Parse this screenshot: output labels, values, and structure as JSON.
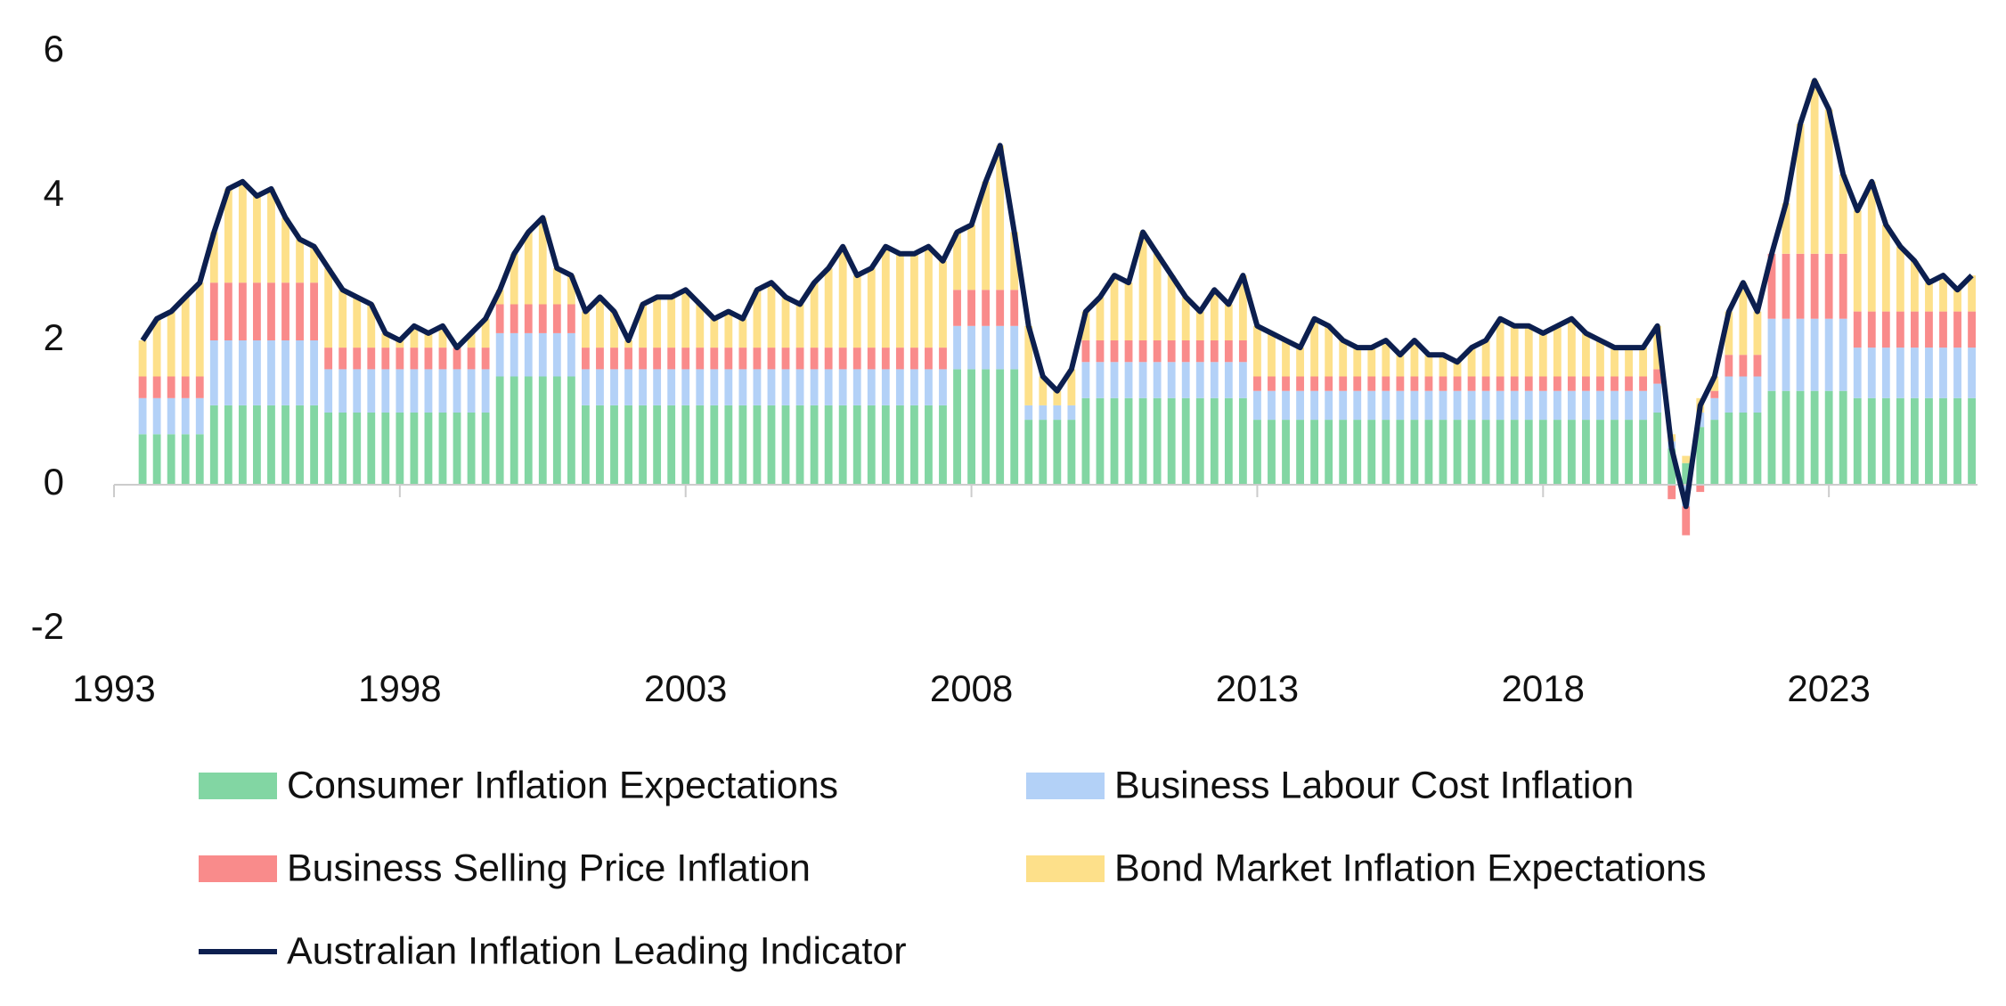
{
  "chart_data": {
    "type": "bar",
    "stacked": true,
    "x": [
      1993.5,
      1993.75,
      1994,
      1994.25,
      1994.5,
      1994.75,
      1995,
      1995.25,
      1995.5,
      1995.75,
      1996,
      1996.25,
      1996.5,
      1996.75,
      1997,
      1997.25,
      1997.5,
      1997.75,
      1998,
      1998.25,
      1998.5,
      1998.75,
      1999,
      1999.25,
      1999.5,
      1999.75,
      2000,
      2000.25,
      2000.5,
      2000.75,
      2001,
      2001.25,
      2001.5,
      2001.75,
      2002,
      2002.25,
      2002.5,
      2002.75,
      2003,
      2003.25,
      2003.5,
      2003.75,
      2004,
      2004.25,
      2004.5,
      2004.75,
      2005,
      2005.25,
      2005.5,
      2005.75,
      2006,
      2006.25,
      2006.5,
      2006.75,
      2007,
      2007.25,
      2007.5,
      2007.75,
      2008,
      2008.25,
      2008.5,
      2008.75,
      2009,
      2009.25,
      2009.5,
      2009.75,
      2010,
      2010.25,
      2010.5,
      2010.75,
      2011,
      2011.25,
      2011.5,
      2011.75,
      2012,
      2012.25,
      2012.5,
      2012.75,
      2013,
      2013.25,
      2013.5,
      2013.75,
      2014,
      2014.25,
      2014.5,
      2014.75,
      2015,
      2015.25,
      2015.5,
      2015.75,
      2016,
      2016.25,
      2016.5,
      2016.75,
      2017,
      2017.25,
      2017.5,
      2017.75,
      2018,
      2018.25,
      2018.5,
      2018.75,
      2019,
      2019.25,
      2019.5,
      2019.75,
      2020,
      2020.25,
      2020.5,
      2020.75,
      2021,
      2021.25,
      2021.5,
      2021.75,
      2022,
      2022.25,
      2022.5,
      2022.75,
      2023,
      2023.25,
      2023.5,
      2023.75,
      2024,
      2024.25,
      2024.5,
      2024.75,
      2025,
      2025.25,
      2025.5
    ],
    "series": [
      {
        "name": "Consumer Inflation Expectations",
        "color": "#82d6a3",
        "values": [
          0.7,
          0.7,
          0.7,
          0.7,
          0.7,
          1.1,
          1.1,
          1.1,
          1.1,
          1.1,
          1.1,
          1.1,
          1.1,
          1.0,
          1.0,
          1.0,
          1.0,
          1.0,
          1.0,
          1.0,
          1.0,
          1.0,
          1.0,
          1.0,
          1.0,
          1.5,
          1.5,
          1.5,
          1.5,
          1.5,
          1.5,
          1.1,
          1.1,
          1.1,
          1.1,
          1.1,
          1.1,
          1.1,
          1.1,
          1.1,
          1.1,
          1.1,
          1.1,
          1.1,
          1.1,
          1.1,
          1.1,
          1.1,
          1.1,
          1.1,
          1.1,
          1.1,
          1.1,
          1.1,
          1.1,
          1.1,
          1.1,
          1.6,
          1.6,
          1.6,
          1.6,
          1.6,
          0.9,
          0.9,
          0.9,
          0.9,
          1.2,
          1.2,
          1.2,
          1.2,
          1.2,
          1.2,
          1.2,
          1.2,
          1.2,
          1.2,
          1.2,
          1.2,
          0.9,
          0.9,
          0.9,
          0.9,
          0.9,
          0.9,
          0.9,
          0.9,
          0.9,
          0.9,
          0.9,
          0.9,
          0.9,
          0.9,
          0.9,
          0.9,
          0.9,
          0.9,
          0.9,
          0.9,
          0.9,
          0.9,
          0.9,
          0.9,
          0.9,
          0.9,
          0.9,
          0.9,
          1.0,
          0.5,
          0.3,
          0.8,
          0.9,
          1.0,
          1.0,
          1.0,
          1.3,
          1.3,
          1.3,
          1.3,
          1.3,
          1.3,
          1.2,
          1.2,
          1.2,
          1.2,
          1.2,
          1.2,
          1.2,
          1.2,
          1.2
        ]
      },
      {
        "name": "Business Labour Cost Inflation",
        "color": "#b3d1f7",
        "values": [
          0.5,
          0.5,
          0.5,
          0.5,
          0.5,
          0.9,
          0.9,
          0.9,
          0.9,
          0.9,
          0.9,
          0.9,
          0.9,
          0.6,
          0.6,
          0.6,
          0.6,
          0.6,
          0.6,
          0.6,
          0.6,
          0.6,
          0.6,
          0.6,
          0.6,
          0.6,
          0.6,
          0.6,
          0.6,
          0.6,
          0.6,
          0.5,
          0.5,
          0.5,
          0.5,
          0.5,
          0.5,
          0.5,
          0.5,
          0.5,
          0.5,
          0.5,
          0.5,
          0.5,
          0.5,
          0.5,
          0.5,
          0.5,
          0.5,
          0.5,
          0.5,
          0.5,
          0.5,
          0.5,
          0.5,
          0.5,
          0.5,
          0.6,
          0.6,
          0.6,
          0.6,
          0.6,
          0.2,
          0.2,
          0.2,
          0.2,
          0.5,
          0.5,
          0.5,
          0.5,
          0.5,
          0.5,
          0.5,
          0.5,
          0.5,
          0.5,
          0.5,
          0.5,
          0.4,
          0.4,
          0.4,
          0.4,
          0.4,
          0.4,
          0.4,
          0.4,
          0.4,
          0.4,
          0.4,
          0.4,
          0.4,
          0.4,
          0.4,
          0.4,
          0.4,
          0.4,
          0.4,
          0.4,
          0.4,
          0.4,
          0.4,
          0.4,
          0.4,
          0.4,
          0.4,
          0.4,
          0.4,
          0.1,
          -0.3,
          0.2,
          0.3,
          0.5,
          0.5,
          0.5,
          1.0,
          1.0,
          1.0,
          1.0,
          1.0,
          1.0,
          0.7,
          0.7,
          0.7,
          0.7,
          0.7,
          0.7,
          0.7,
          0.7,
          0.7
        ]
      },
      {
        "name": "Business Selling Price Inflation",
        "color": "#f98b8b",
        "values": [
          0.3,
          0.3,
          0.3,
          0.3,
          0.3,
          0.8,
          0.8,
          0.8,
          0.8,
          0.8,
          0.8,
          0.8,
          0.8,
          0.3,
          0.3,
          0.3,
          0.3,
          0.3,
          0.3,
          0.3,
          0.3,
          0.3,
          0.3,
          0.3,
          0.3,
          0.4,
          0.4,
          0.4,
          0.4,
          0.4,
          0.4,
          0.3,
          0.3,
          0.3,
          0.3,
          0.3,
          0.3,
          0.3,
          0.3,
          0.3,
          0.3,
          0.3,
          0.3,
          0.3,
          0.3,
          0.3,
          0.3,
          0.3,
          0.3,
          0.3,
          0.3,
          0.3,
          0.3,
          0.3,
          0.3,
          0.3,
          0.3,
          0.5,
          0.5,
          0.5,
          0.5,
          0.5,
          0.0,
          0.0,
          0.0,
          0.0,
          0.3,
          0.3,
          0.3,
          0.3,
          0.3,
          0.3,
          0.3,
          0.3,
          0.3,
          0.3,
          0.3,
          0.3,
          0.2,
          0.2,
          0.2,
          0.2,
          0.2,
          0.2,
          0.2,
          0.2,
          0.2,
          0.2,
          0.2,
          0.2,
          0.2,
          0.2,
          0.2,
          0.2,
          0.2,
          0.2,
          0.2,
          0.2,
          0.2,
          0.2,
          0.2,
          0.2,
          0.2,
          0.2,
          0.2,
          0.2,
          0.2,
          -0.2,
          -0.4,
          -0.1,
          0.1,
          0.3,
          0.3,
          0.3,
          0.9,
          0.9,
          0.9,
          0.9,
          0.9,
          0.9,
          0.5,
          0.5,
          0.5,
          0.5,
          0.5,
          0.5,
          0.5,
          0.5,
          0.5
        ]
      },
      {
        "name": "Bond Market Inflation Expectations",
        "color": "#fde08a",
        "values": [
          0.5,
          0.8,
          0.9,
          1.1,
          1.3,
          0.7,
          1.3,
          1.4,
          1.2,
          1.3,
          0.9,
          0.6,
          0.5,
          1.1,
          0.8,
          0.7,
          0.6,
          0.2,
          0.1,
          0.3,
          0.2,
          0.3,
          0.0,
          0.2,
          0.4,
          0.2,
          0.7,
          1.0,
          1.2,
          0.5,
          0.4,
          0.5,
          0.7,
          0.5,
          0.1,
          0.6,
          0.7,
          0.7,
          0.8,
          0.6,
          0.4,
          0.5,
          0.4,
          0.8,
          0.9,
          0.7,
          0.6,
          0.9,
          1.1,
          1.4,
          1.0,
          1.1,
          1.4,
          1.3,
          1.3,
          1.4,
          1.2,
          0.8,
          0.9,
          1.5,
          2.0,
          0.8,
          1.1,
          0.4,
          0.2,
          0.5,
          0.4,
          0.6,
          0.9,
          0.8,
          1.5,
          1.2,
          0.9,
          0.6,
          0.4,
          0.7,
          0.5,
          0.9,
          0.7,
          0.6,
          0.5,
          0.4,
          0.8,
          0.7,
          0.5,
          0.4,
          0.4,
          0.5,
          0.3,
          0.5,
          0.3,
          0.3,
          0.2,
          0.4,
          0.5,
          0.8,
          0.7,
          0.7,
          0.6,
          0.7,
          0.8,
          0.6,
          0.5,
          0.4,
          0.4,
          0.4,
          0.6,
          0.1,
          0.1,
          0.2,
          0.2,
          0.6,
          1.0,
          0.6,
          0.0,
          0.7,
          1.8,
          2.4,
          2.0,
          1.1,
          1.4,
          1.8,
          1.2,
          0.9,
          0.7,
          0.4,
          0.5,
          0.3,
          0.5
        ]
      },
      {
        "name": "Australian Inflation Leading Indicator",
        "type": "line",
        "color": "#0c1f4f",
        "values": [
          2.0,
          2.3,
          2.4,
          2.6,
          2.8,
          3.5,
          4.1,
          4.2,
          4.0,
          4.1,
          3.7,
          3.4,
          3.3,
          3.0,
          2.7,
          2.6,
          2.5,
          2.1,
          2.0,
          2.2,
          2.1,
          2.2,
          1.9,
          2.1,
          2.3,
          2.7,
          3.2,
          3.5,
          3.7,
          3.0,
          2.9,
          2.4,
          2.6,
          2.4,
          2.0,
          2.5,
          2.6,
          2.6,
          2.7,
          2.5,
          2.3,
          2.4,
          2.3,
          2.7,
          2.8,
          2.6,
          2.5,
          2.8,
          3.0,
          3.3,
          2.9,
          3.0,
          3.3,
          3.2,
          3.2,
          3.3,
          3.1,
          3.5,
          3.6,
          4.2,
          4.7,
          3.5,
          2.2,
          1.5,
          1.3,
          1.6,
          2.4,
          2.6,
          2.9,
          2.8,
          3.5,
          3.2,
          2.9,
          2.6,
          2.4,
          2.7,
          2.5,
          2.9,
          2.2,
          2.1,
          2.0,
          1.9,
          2.3,
          2.2,
          2.0,
          1.9,
          1.9,
          2.0,
          1.8,
          2.0,
          1.8,
          1.8,
          1.7,
          1.9,
          2.0,
          2.3,
          2.2,
          2.2,
          2.1,
          2.2,
          2.3,
          2.1,
          2.0,
          1.9,
          1.9,
          1.9,
          2.2,
          0.5,
          -0.3,
          1.1,
          1.5,
          2.4,
          2.8,
          2.4,
          3.2,
          3.9,
          5.0,
          5.6,
          5.2,
          4.3,
          3.8,
          4.2,
          3.6,
          3.3,
          3.1,
          2.8,
          2.9,
          2.7,
          2.9
        ]
      }
    ],
    "xlim": [
      1993,
      2025.6
    ],
    "xticks": [
      1993,
      1998,
      2003,
      2008,
      2013,
      2018,
      2023
    ],
    "ylim": [
      -2,
      6
    ],
    "yticks": [
      -2,
      0,
      2,
      4,
      6
    ],
    "grid": false
  }
}
